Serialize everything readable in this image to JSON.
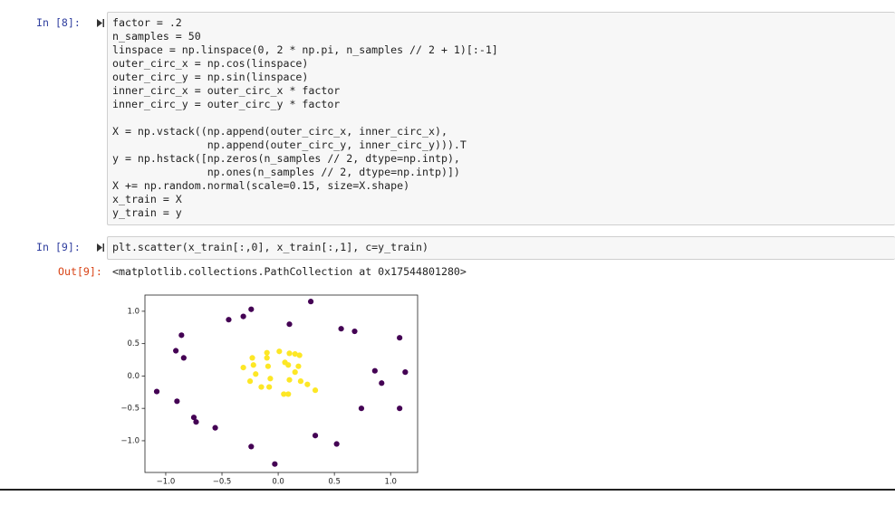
{
  "cells": [
    {
      "prompt": "In [8]:",
      "code": [
        [
          "factor = .2",
          "n_samples = 50",
          "linspace = np.linspace(0, 2 * np.pi, n_samples // 2 + 1)[:-1]",
          "outer_circ_x = np.cos(linspace)",
          "outer_circ_y = np.sin(linspace)",
          "inner_circ_x = outer_circ_x * factor",
          "inner_circ_y = outer_circ_y * factor"
        ],
        [
          "X = np.vstack((np.append(outer_circ_x, inner_circ_x),",
          "               np.append(outer_circ_y, inner_circ_y))).T",
          "y = np.hstack([np.zeros(n_samples // 2, dtype=np.intp),",
          "               np.ones(n_samples // 2, dtype=np.intp)])",
          "X += np.random.normal(scale=0.15, size=X.shape)",
          "x_train = X",
          "y_train = y"
        ]
      ]
    },
    {
      "prompt": "In [9]:",
      "code": [
        [
          "plt.scatter(x_train[:,0], x_train[:,1], c=y_train)"
        ]
      ],
      "output_prompt": "Out[9]:",
      "output": "<matplotlib.collections.PathCollection at 0x17544801280>"
    }
  ],
  "chart_data": {
    "type": "scatter",
    "xlim": [
      -1.185,
      1.24
    ],
    "ylim": [
      -1.49,
      1.25
    ],
    "xticks": [
      {
        "value": -1,
        "label": "−1.0"
      },
      {
        "value": -0.5,
        "label": "−0.5"
      },
      {
        "value": 0,
        "label": "0.0"
      },
      0.5,
      {
        "value": 1,
        "label": "1.0"
      }
    ],
    "yticks": [
      {
        "value": -1,
        "label": "−1.0"
      },
      {
        "value": -0.5,
        "label": "−0.5"
      },
      {
        "value": 0,
        "label": "0.0"
      },
      0.5,
      {
        "value": 1,
        "label": "1.0"
      }
    ],
    "series": [
      {
        "color": "#440154",
        "x": [
          0.29,
          -0.24,
          -0.31,
          -0.44,
          0.1,
          0.56,
          0.68,
          -0.86,
          1.08,
          -0.91,
          -0.84,
          0.86,
          1.13,
          0.92,
          -1.08,
          -0.9,
          0.74,
          1.08,
          -0.75,
          -0.73,
          -0.56,
          0.33,
          0.52,
          -0.24,
          -0.03
        ],
        "y": [
          1.15,
          1.03,
          0.92,
          0.87,
          0.8,
          0.73,
          0.69,
          0.63,
          0.59,
          0.39,
          0.28,
          0.08,
          0.06,
          -0.11,
          -0.24,
          -0.39,
          -0.5,
          -0.5,
          -0.64,
          -0.71,
          -0.8,
          -0.92,
          -1.05,
          -1.09,
          -1.36
        ]
      },
      {
        "color": "#fde725",
        "x": [
          -0.1,
          0.01,
          0.1,
          -0.23,
          -0.1,
          0.15,
          0.19,
          -0.31,
          -0.22,
          -0.09,
          0.06,
          0.09,
          0.18,
          -0.2,
          0.15,
          -0.25,
          -0.07,
          0.1,
          0.2,
          0.26,
          -0.15,
          -0.08,
          0.05,
          0.09,
          0.33
        ],
        "y": [
          0.36,
          0.38,
          0.35,
          0.28,
          0.28,
          0.34,
          0.32,
          0.13,
          0.17,
          0.15,
          0.21,
          0.17,
          0.15,
          0.03,
          0.06,
          -0.08,
          -0.04,
          -0.06,
          -0.08,
          -0.13,
          -0.17,
          -0.17,
          -0.28,
          -0.28,
          -0.22
        ]
      }
    ]
  }
}
